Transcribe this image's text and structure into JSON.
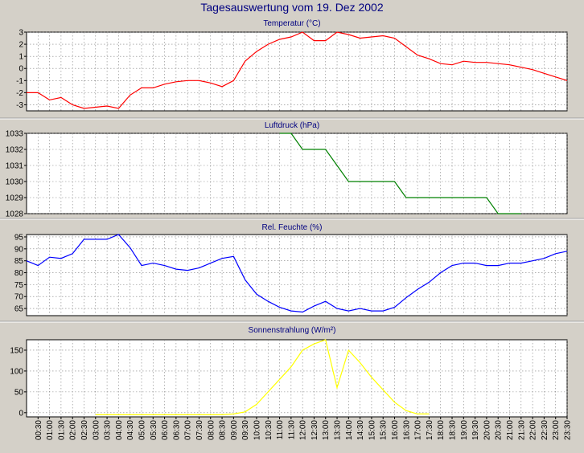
{
  "title": "Tagesauswertung vom 19. Dez 2002",
  "colors": {
    "background": "#d4d0c8",
    "plot": "#ffffff",
    "grid": "#808080",
    "title": "#000080",
    "separator": "#a0a0a0"
  },
  "x_labels": [
    "00:30",
    "01:00",
    "01:30",
    "02:00",
    "02:30",
    "03:00",
    "03:30",
    "04:00",
    "04:30",
    "05:00",
    "05:30",
    "06:00",
    "06:30",
    "07:00",
    "07:30",
    "08:00",
    "08:30",
    "09:00",
    "09:30",
    "10:00",
    "10:30",
    "11:00",
    "11:30",
    "12:00",
    "12:30",
    "13:00",
    "13:30",
    "14:00",
    "14:30",
    "15:00",
    "15:30",
    "16:00",
    "16:30",
    "17:00",
    "17:30",
    "18:00",
    "18:30",
    "19:00",
    "19:30",
    "20:00",
    "20:30",
    "21:00",
    "21:30",
    "22:00",
    "22:30",
    "23:00",
    "23:30"
  ],
  "chart_data": [
    {
      "type": "line",
      "title": "Temperatur (°C)",
      "color": "#ff0000",
      "ylim": [
        -3.5,
        3
      ],
      "yticks": [
        3,
        2,
        1,
        0,
        -1,
        -2,
        -3
      ],
      "x": [
        "00:00",
        "00:30",
        "01:00",
        "01:30",
        "02:00",
        "02:30",
        "03:00",
        "03:30",
        "04:00",
        "04:30",
        "05:00",
        "05:30",
        "06:00",
        "06:30",
        "07:00",
        "07:30",
        "08:00",
        "08:30",
        "09:00",
        "09:30",
        "10:00",
        "10:30",
        "11:00",
        "11:30",
        "12:00",
        "12:30",
        "13:00",
        "13:30",
        "14:00",
        "14:30",
        "15:00",
        "15:30",
        "16:00",
        "16:30",
        "17:00",
        "17:30",
        "18:00",
        "18:30",
        "19:00",
        "19:30",
        "20:00",
        "20:30",
        "21:00",
        "21:30",
        "22:00",
        "22:30",
        "23:00",
        "23:30"
      ],
      "values": [
        -2,
        -2,
        -2.6,
        -2.4,
        -3,
        -3.3,
        -3.2,
        -3.1,
        -3.3,
        -2.2,
        -1.6,
        -1.6,
        -1.3,
        -1.1,
        -1,
        -1,
        -1.2,
        -1.5,
        -1,
        0.6,
        1.4,
        2,
        2.4,
        2.6,
        3,
        2.3,
        2.3,
        3,
        2.8,
        2.5,
        2.6,
        2.7,
        2.5,
        1.8,
        1.1,
        0.8,
        0.4,
        0.3,
        0.6,
        0.5,
        0.5,
        0.4,
        0.3,
        0.1,
        -0.1,
        -0.4,
        -0.7,
        -1
      ]
    },
    {
      "type": "line",
      "title": "Luftdruck (hPa)",
      "color": "#008000",
      "ylim": [
        1028,
        1033
      ],
      "yticks": [
        1033,
        1032,
        1031,
        1030,
        1029,
        1028
      ],
      "x": [
        "11:00",
        "11:30",
        "12:00",
        "12:30",
        "13:00",
        "13:30",
        "14:00",
        "14:30",
        "15:00",
        "15:30",
        "16:00",
        "16:30",
        "17:00",
        "17:30",
        "18:00",
        "18:30",
        "19:00",
        "19:30",
        "20:00",
        "20:30",
        "21:00",
        "21:30"
      ],
      "values": [
        1033,
        1033,
        1032,
        1032,
        1032,
        1031,
        1030,
        1030,
        1030,
        1030,
        1030,
        1029,
        1029,
        1029,
        1029,
        1029,
        1029,
        1029,
        1029,
        1028,
        1028,
        1028
      ]
    },
    {
      "type": "line",
      "title": "Rel. Feuchte (%)",
      "color": "#0000ff",
      "ylim": [
        62,
        96
      ],
      "yticks": [
        95,
        90,
        85,
        80,
        75,
        70,
        65
      ],
      "x": [
        "00:00",
        "00:30",
        "01:00",
        "01:30",
        "02:00",
        "02:30",
        "03:00",
        "03:30",
        "04:00",
        "04:30",
        "05:00",
        "05:30",
        "06:00",
        "06:30",
        "07:00",
        "07:30",
        "08:00",
        "08:30",
        "09:00",
        "09:30",
        "10:00",
        "10:30",
        "11:00",
        "11:30",
        "12:00",
        "12:30",
        "13:00",
        "13:30",
        "14:00",
        "14:30",
        "15:00",
        "15:30",
        "16:00",
        "16:30",
        "17:00",
        "17:30",
        "18:00",
        "18:30",
        "19:00",
        "19:30",
        "20:00",
        "20:30",
        "21:00",
        "21:30",
        "22:00",
        "22:30",
        "23:00",
        "23:30"
      ],
      "values": [
        85,
        83,
        86.5,
        86,
        88,
        94,
        94,
        94,
        96,
        90.5,
        83,
        84,
        83,
        81.5,
        81,
        82,
        84,
        86,
        86.8,
        77,
        71,
        68,
        65.5,
        64,
        63.5,
        66,
        68,
        65,
        64,
        65,
        64,
        64,
        65.5,
        69.5,
        73,
        76,
        80,
        83,
        84,
        84,
        83,
        83,
        84,
        84,
        85,
        86,
        88,
        89
      ]
    },
    {
      "type": "line",
      "title": "Sonnenstrahlung (W/m²)",
      "color": "#ffff00",
      "ylim": [
        -10,
        175
      ],
      "yticks": [
        150,
        100,
        50,
        0
      ],
      "x": [
        "03:00",
        "03:30",
        "04:00",
        "04:30",
        "05:00",
        "05:30",
        "06:00",
        "06:30",
        "07:00",
        "07:30",
        "08:00",
        "08:30",
        "09:00",
        "09:30",
        "10:00",
        "10:30",
        "11:00",
        "11:30",
        "12:00",
        "12:30",
        "13:00",
        "13:30",
        "14:00",
        "14:30",
        "15:00",
        "15:30",
        "16:00",
        "16:30",
        "17:00",
        "17:30"
      ],
      "values": [
        -5,
        -5,
        -5,
        -5,
        -5,
        -5,
        -5,
        -5,
        -5,
        -5,
        -5,
        -5,
        -3,
        2,
        20,
        50,
        80,
        110,
        150,
        165,
        175,
        60,
        150,
        120,
        85,
        55,
        25,
        5,
        -3,
        -3
      ]
    }
  ]
}
